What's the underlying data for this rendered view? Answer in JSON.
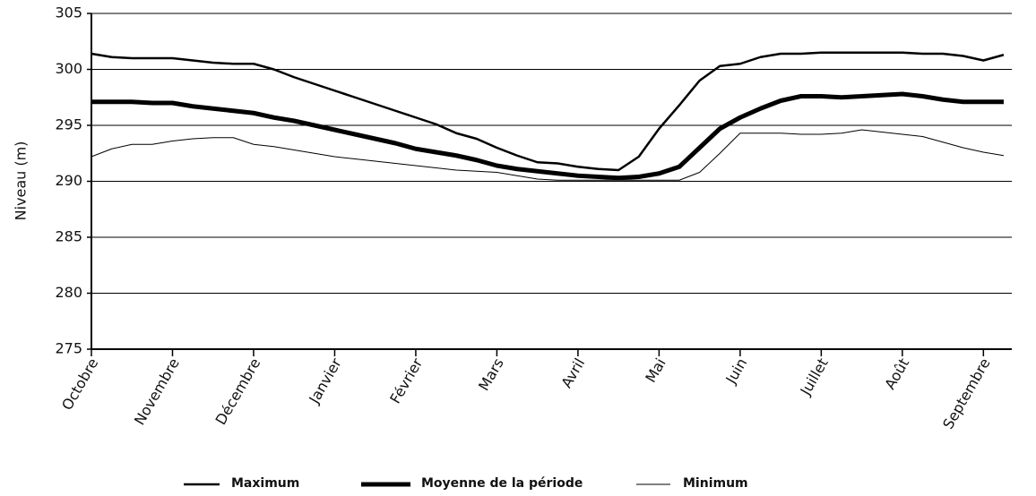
{
  "chart_data": {
    "type": "line",
    "y_label": "Niveau (m)",
    "x": [
      0,
      0.25,
      0.5,
      0.75,
      1,
      1.25,
      1.5,
      1.75,
      2,
      2.25,
      2.5,
      2.75,
      3,
      3.25,
      3.5,
      3.75,
      4,
      4.25,
      4.5,
      4.75,
      5,
      5.25,
      5.5,
      5.75,
      6,
      6.25,
      6.5,
      6.75,
      7,
      7.25,
      7.5,
      7.75,
      8,
      8.25,
      8.5,
      8.75,
      9,
      9.25,
      9.5,
      9.75,
      10,
      10.25,
      10.5,
      10.75,
      11,
      11.25
    ],
    "xlim": [
      0,
      11.35
    ],
    "xticks": [
      {
        "value": 0,
        "label": "Octobre"
      },
      {
        "value": 1,
        "label": "Novembre"
      },
      {
        "value": 2,
        "label": "Décembre"
      },
      {
        "value": 3,
        "label": "Janvier"
      },
      {
        "value": 4,
        "label": "Février"
      },
      {
        "value": 5,
        "label": "Mars"
      },
      {
        "value": 6,
        "label": "Avril"
      },
      {
        "value": 7,
        "label": "Mai"
      },
      {
        "value": 8,
        "label": "Juin"
      },
      {
        "value": 9,
        "label": "Juillet"
      },
      {
        "value": 10,
        "label": "Août"
      },
      {
        "value": 11,
        "label": "Septembre"
      }
    ],
    "ylim": [
      275,
      305
    ],
    "yticks": [
      275,
      280,
      285,
      290,
      295,
      300,
      305
    ],
    "grid": true,
    "legend": "bottom",
    "series": [
      {
        "name": "Maximum",
        "color": "#000000",
        "line_width": 2.5,
        "values": [
          301.4,
          301.1,
          301.0,
          301.0,
          301.0,
          300.8,
          300.6,
          300.5,
          300.5,
          300.0,
          299.3,
          298.7,
          298.1,
          297.5,
          296.9,
          296.3,
          295.7,
          295.1,
          294.3,
          293.8,
          293.0,
          292.3,
          291.7,
          291.6,
          291.3,
          291.1,
          291.0,
          292.2,
          294.7,
          296.8,
          299.0,
          300.3,
          300.5,
          301.1,
          301.4,
          301.4,
          301.5,
          301.5,
          301.5,
          301.5,
          301.5,
          301.4,
          301.4,
          301.2,
          300.8,
          301.3
        ]
      },
      {
        "name": "Moyenne de la période",
        "color": "#000000",
        "line_width": 5,
        "values": [
          297.1,
          297.1,
          297.1,
          297.0,
          297.0,
          296.7,
          296.5,
          296.3,
          296.1,
          295.7,
          295.4,
          295.0,
          294.6,
          294.2,
          293.8,
          293.4,
          292.9,
          292.6,
          292.3,
          291.9,
          291.4,
          291.1,
          290.9,
          290.7,
          290.5,
          290.4,
          290.3,
          290.4,
          290.7,
          291.3,
          293.0,
          294.7,
          295.7,
          296.5,
          297.2,
          297.6,
          297.6,
          297.5,
          297.6,
          297.7,
          297.8,
          297.6,
          297.3,
          297.1,
          297.1,
          297.1
        ]
      },
      {
        "name": "Minimum",
        "color": "#000000",
        "line_width": 1,
        "values": [
          292.2,
          292.9,
          293.3,
          293.3,
          293.6,
          293.8,
          293.9,
          293.9,
          293.3,
          293.1,
          292.8,
          292.5,
          292.2,
          292.0,
          291.8,
          291.6,
          291.4,
          291.2,
          291.0,
          290.9,
          290.8,
          290.5,
          290.2,
          290.1,
          290.1,
          290.1,
          290.1,
          290.1,
          290.1,
          290.1,
          290.8,
          292.5,
          294.3,
          294.3,
          294.3,
          294.2,
          294.2,
          294.3,
          294.6,
          294.4,
          294.2,
          294.0,
          293.5,
          293.0,
          292.6,
          292.3
        ]
      }
    ]
  }
}
